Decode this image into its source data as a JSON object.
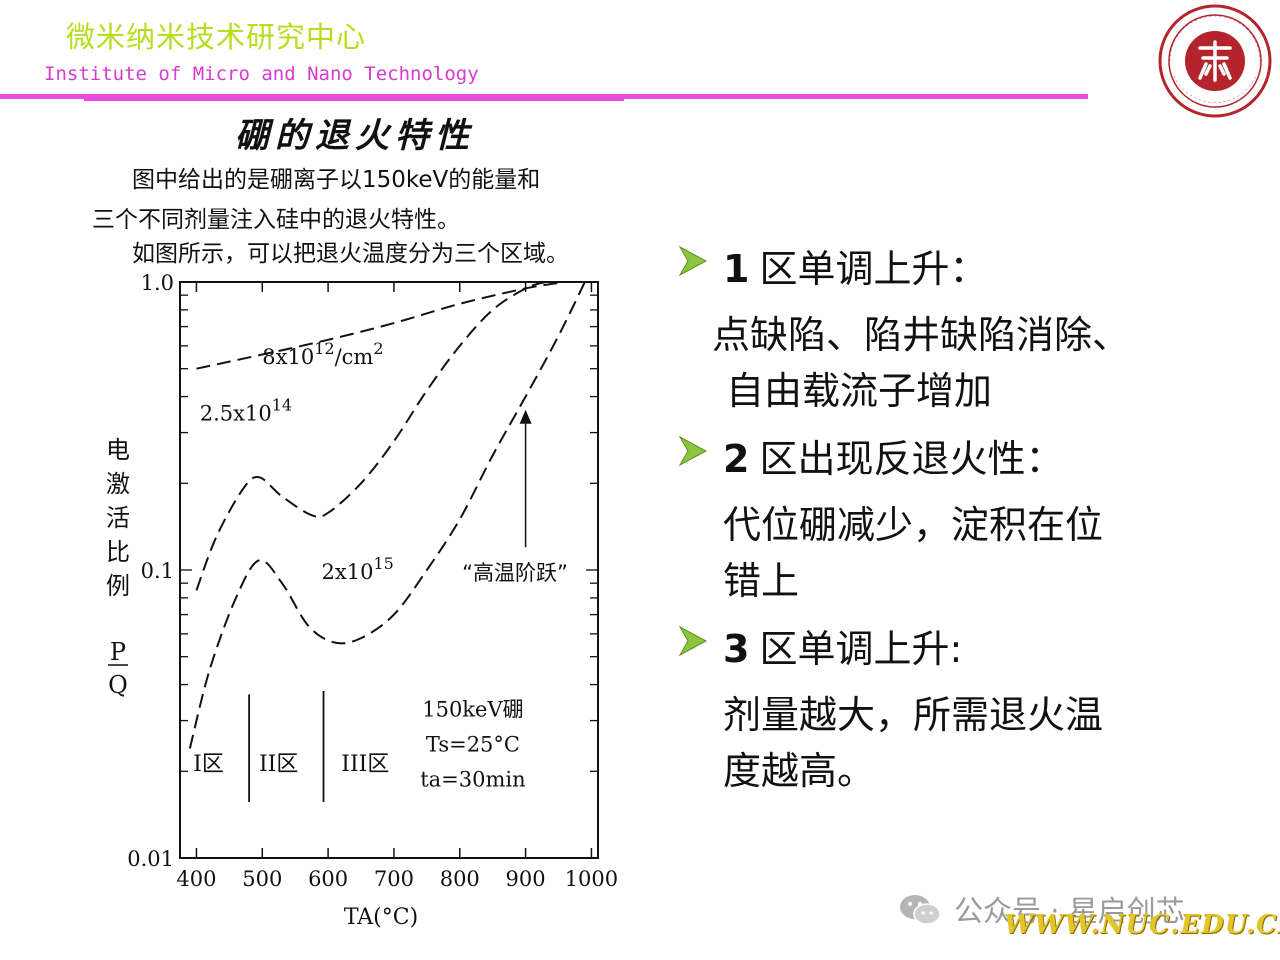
{
  "header": {
    "title_cn": "微米纳米技术研究中心",
    "title_en": "Institute of Micro and Nano Technology",
    "logo_icon": "university-seal-icon"
  },
  "figure": {
    "title": "硼的退火特性",
    "caption_lines": [
      "图中给出的是硼离子以150keV的能量和",
      "三个不同剂量注入硅中的退火特性。",
      "如图所示，可以把退火温度分为三个区域。"
    ]
  },
  "chart_data": {
    "type": "line",
    "xlabel": "TA(°C)",
    "ylabel_chars": [
      "电",
      "激",
      "活",
      "比",
      "例"
    ],
    "ylabel_ratio": {
      "numerator": "P",
      "denominator": "Q"
    },
    "y_scale": "log",
    "xlim": [
      375,
      1010
    ],
    "ylim": [
      0.01,
      1.0
    ],
    "x_ticks": [
      400,
      500,
      600,
      700,
      800,
      900,
      1000
    ],
    "y_tick_labels": [
      {
        "value": 1.0,
        "label": "1.0"
      },
      {
        "value": 0.1,
        "label": "0.1"
      },
      {
        "value": 0.01,
        "label": "0.01"
      }
    ],
    "series": [
      {
        "name": "8x10¹²/cm²",
        "label_base": "8x10",
        "label_exp": "12",
        "label_unit": "/cm",
        "label_unit_exp": "2",
        "label_at": [
          500,
          0.52
        ],
        "points": [
          [
            400,
            0.5
          ],
          [
            500,
            0.56
          ],
          [
            600,
            0.63
          ],
          [
            700,
            0.72
          ],
          [
            800,
            0.84
          ],
          [
            900,
            0.95
          ],
          [
            960,
            1.0
          ]
        ]
      },
      {
        "name": "2.5x10¹⁴",
        "label_base": "2.5x10",
        "label_exp": "14",
        "label_at": [
          405,
          0.33
        ],
        "points": [
          [
            400,
            0.085
          ],
          [
            430,
            0.13
          ],
          [
            470,
            0.19
          ],
          [
            495,
            0.21
          ],
          [
            530,
            0.18
          ],
          [
            575,
            0.155
          ],
          [
            600,
            0.158
          ],
          [
            650,
            0.2
          ],
          [
            700,
            0.28
          ],
          [
            750,
            0.42
          ],
          [
            800,
            0.6
          ],
          [
            850,
            0.8
          ],
          [
            900,
            0.95
          ],
          [
            930,
            1.0
          ]
        ]
      },
      {
        "name": "2x10¹⁵",
        "label_base": "2x10",
        "label_exp": "15",
        "label_at": [
          590,
          0.093
        ],
        "points": [
          [
            390,
            0.024
          ],
          [
            420,
            0.045
          ],
          [
            460,
            0.08
          ],
          [
            495,
            0.108
          ],
          [
            530,
            0.09
          ],
          [
            570,
            0.064
          ],
          [
            610,
            0.056
          ],
          [
            650,
            0.058
          ],
          [
            700,
            0.07
          ],
          [
            750,
            0.1
          ],
          [
            800,
            0.15
          ],
          [
            850,
            0.25
          ],
          [
            900,
            0.4
          ],
          [
            950,
            0.65
          ],
          [
            990,
            1.0
          ]
        ]
      }
    ],
    "annotation": {
      "text": "“高温阶跃”",
      "at": [
        890,
        0.1
      ],
      "arrow_x": 900,
      "arrow_from": 0.12,
      "arrow_to": 0.36
    },
    "regions": [
      {
        "label": "I区",
        "at": [
          395,
          0.021
        ]
      },
      {
        "label": "II区",
        "at": [
          495,
          0.021
        ]
      },
      {
        "label": "III区",
        "at": [
          620,
          0.021
        ]
      }
    ],
    "region_dividers": [
      {
        "x": 480,
        "y_top": 0.037
      },
      {
        "x": 593,
        "y_top": 0.038
      }
    ],
    "conditions": [
      "150keV硼",
      "Ts=25°C",
      "ta=30min"
    ],
    "conditions_at": [
      820,
      0.033
    ],
    "grid": false
  },
  "bullets": [
    {
      "num": "1",
      "head": "区单调上升：",
      "body": [
        "点缺陷、陷井缺陷消除、",
        "自由载流子增加"
      ]
    },
    {
      "num": "2",
      "head": "区出现反退火性：",
      "body": [
        "代位硼减少，淀积在位",
        "错上"
      ]
    },
    {
      "num": "3",
      "head": "区单调上升:",
      "body": [
        "剂量越大，所需退火温",
        "度越高。"
      ]
    }
  ],
  "colors": {
    "header_cn": "#b6dd1e",
    "header_en": "#d63ccf",
    "rule": "#e94be0",
    "bullet_arrow": "#8cc63f",
    "seal": "#b3242c",
    "footer_url": "#e3c52a"
  },
  "footer": {
    "wechat": "公众号 · 星启创芯",
    "wechat_icon": "wechat-icon",
    "url": "WWW.NUC.EDU.CN"
  }
}
